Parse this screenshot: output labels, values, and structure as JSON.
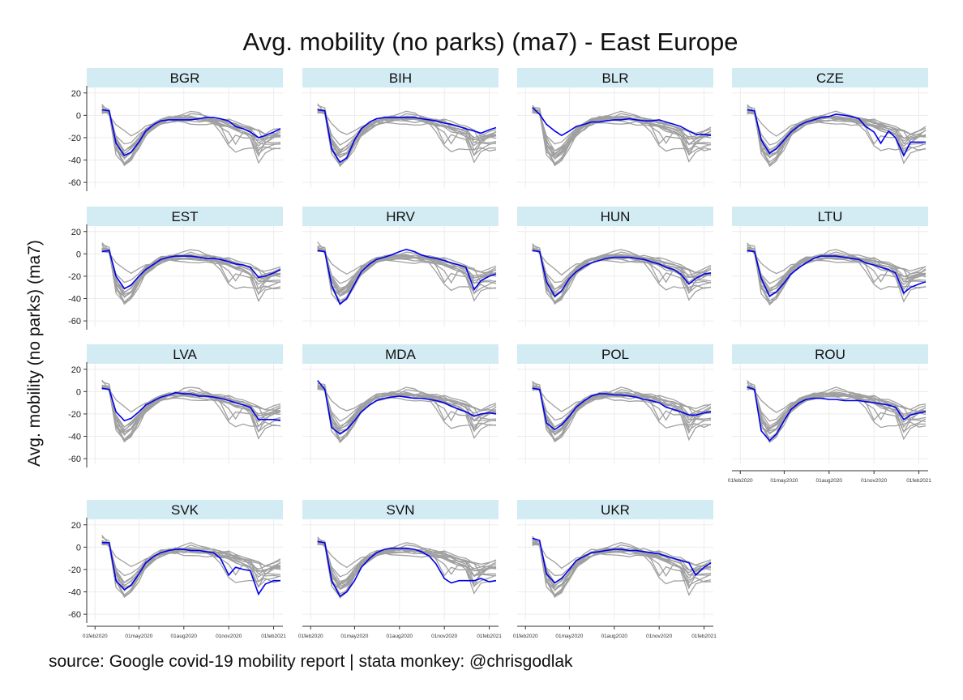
{
  "chart_data": {
    "type": "line",
    "title": "Avg. mobility (no parks) (ma7) - East Europe",
    "ylabel": "Avg. mobility (no parks) (ma7)",
    "note": "source: Google covid-19 mobility report | stata monkey: @chrisgodlak",
    "ylim": [
      -65,
      22
    ],
    "yticks": [
      20,
      0,
      -20,
      -40,
      -60
    ],
    "xlim": [
      "2020-02-15",
      "2021-02-15"
    ],
    "xticks": [
      "01feb2020",
      "01may2020",
      "01aug2020",
      "01nov2020",
      "01feb2021"
    ],
    "grid": true,
    "colors": {
      "highlight": "#0000ee",
      "background": "#a0a0a0",
      "strip": "#d3ebf3",
      "grid": "#ececec"
    },
    "x": [
      "2020-02-15",
      "2020-03-01",
      "2020-03-15",
      "2020-04-01",
      "2020-04-15",
      "2020-05-01",
      "2020-05-15",
      "2020-06-01",
      "2020-06-15",
      "2020-07-01",
      "2020-07-15",
      "2020-08-01",
      "2020-08-15",
      "2020-09-01",
      "2020-09-15",
      "2020-10-01",
      "2020-10-15",
      "2020-11-01",
      "2020-11-15",
      "2020-12-01",
      "2020-12-15",
      "2021-01-01",
      "2021-01-15",
      "2021-02-01",
      "2021-02-15"
    ],
    "series": [
      {
        "name": "BGR",
        "values": [
          5,
          4,
          -25,
          -36,
          -33,
          -24,
          -14,
          -8,
          -5,
          -4,
          -4,
          -4,
          -4,
          -3,
          -2,
          -2,
          -3,
          -5,
          -10,
          -12,
          -15,
          -20,
          -18,
          -15,
          -12
        ]
      },
      {
        "name": "BIH",
        "values": [
          5,
          4,
          -30,
          -42,
          -38,
          -22,
          -12,
          -6,
          -3,
          -2,
          -2,
          -2,
          -2,
          -2,
          -3,
          -4,
          -5,
          -7,
          -8,
          -10,
          -12,
          -14,
          -16,
          -13,
          -11
        ]
      },
      {
        "name": "BLR",
        "values": [
          7,
          1,
          -8,
          -14,
          -18,
          -14,
          -10,
          -8,
          -6,
          -6,
          -5,
          -4,
          -4,
          -3,
          -4,
          -5,
          -5,
          -4,
          -6,
          -8,
          -10,
          -14,
          -17,
          -17,
          -18
        ]
      },
      {
        "name": "CZE",
        "values": [
          5,
          4,
          -22,
          -34,
          -30,
          -22,
          -15,
          -9,
          -6,
          -4,
          -2,
          -1,
          1,
          0,
          -1,
          -3,
          -10,
          -15,
          -25,
          -14,
          -20,
          -36,
          -24,
          -24,
          -24
        ]
      },
      {
        "name": "EST",
        "values": [
          2,
          3,
          -20,
          -31,
          -28,
          -20,
          -14,
          -9,
          -5,
          -3,
          -2,
          -2,
          -2,
          -3,
          -4,
          -4,
          -5,
          -7,
          -9,
          -10,
          -12,
          -21,
          -20,
          -17,
          -14
        ]
      },
      {
        "name": "HRV",
        "values": [
          3,
          2,
          -28,
          -45,
          -40,
          -27,
          -16,
          -9,
          -5,
          -3,
          -1,
          2,
          4,
          2,
          -1,
          -3,
          -4,
          -6,
          -8,
          -10,
          -12,
          -32,
          -24,
          -20,
          -18
        ]
      },
      {
        "name": "HUN",
        "values": [
          3,
          2,
          -25,
          -38,
          -33,
          -22,
          -16,
          -11,
          -8,
          -6,
          -4,
          -3,
          -3,
          -3,
          -4,
          -5,
          -7,
          -9,
          -12,
          -14,
          -18,
          -27,
          -22,
          -18,
          -17
        ]
      },
      {
        "name": "LTU",
        "values": [
          3,
          2,
          -22,
          -38,
          -34,
          -26,
          -18,
          -12,
          -8,
          -4,
          -2,
          -2,
          -2,
          -3,
          -4,
          -5,
          -8,
          -10,
          -12,
          -14,
          -17,
          -35,
          -30,
          -27,
          -25
        ]
      },
      {
        "name": "LVA",
        "values": [
          3,
          2,
          -18,
          -26,
          -24,
          -18,
          -12,
          -8,
          -5,
          -3,
          -1,
          -2,
          -2,
          -4,
          -4,
          -5,
          -6,
          -8,
          -10,
          -12,
          -14,
          -25,
          -25,
          -25,
          -26
        ]
      },
      {
        "name": "MDA",
        "values": [
          10,
          2,
          -32,
          -38,
          -34,
          -26,
          -18,
          -12,
          -8,
          -6,
          -5,
          -4,
          -5,
          -6,
          -6,
          -7,
          -8,
          -10,
          -13,
          -16,
          -18,
          -22,
          -20,
          -19,
          -20
        ]
      },
      {
        "name": "POL",
        "values": [
          3,
          2,
          -28,
          -34,
          -30,
          -22,
          -14,
          -8,
          -4,
          -2,
          -2,
          -3,
          -3,
          -4,
          -5,
          -7,
          -8,
          -10,
          -14,
          -16,
          -18,
          -21,
          -21,
          -19,
          -18
        ]
      },
      {
        "name": "ROU",
        "values": [
          4,
          2,
          -35,
          -44,
          -38,
          -26,
          -16,
          -10,
          -7,
          -6,
          -6,
          -7,
          -7,
          -8,
          -8,
          -8,
          -9,
          -10,
          -11,
          -12,
          -14,
          -25,
          -21,
          -19,
          -18
        ]
      },
      {
        "name": "SVK",
        "values": [
          4,
          4,
          -30,
          -38,
          -34,
          -24,
          -14,
          -8,
          -5,
          -3,
          -2,
          -2,
          -3,
          -3,
          -4,
          -5,
          -10,
          -25,
          -18,
          -20,
          -21,
          -42,
          -33,
          -30,
          -30
        ]
      },
      {
        "name": "SVN",
        "values": [
          5,
          4,
          -30,
          -44,
          -40,
          -30,
          -18,
          -10,
          -5,
          -2,
          -1,
          -1,
          -1,
          -2,
          -4,
          -8,
          -15,
          -28,
          -32,
          -30,
          -30,
          -30,
          -28,
          -31,
          -30
        ]
      },
      {
        "name": "UKR",
        "values": [
          8,
          6,
          -24,
          -32,
          -28,
          -20,
          -12,
          -8,
          -5,
          -4,
          -3,
          -2,
          -2,
          -3,
          -3,
          -4,
          -5,
          -6,
          -8,
          -10,
          -12,
          -14,
          -25,
          -18,
          -14
        ]
      }
    ],
    "panels": [
      "BGR",
      "BIH",
      "BLR",
      "CZE",
      "EST",
      "HRV",
      "HUN",
      "LTU",
      "LVA",
      "MDA",
      "POL",
      "ROU",
      "SVK",
      "SVN",
      "UKR"
    ]
  }
}
